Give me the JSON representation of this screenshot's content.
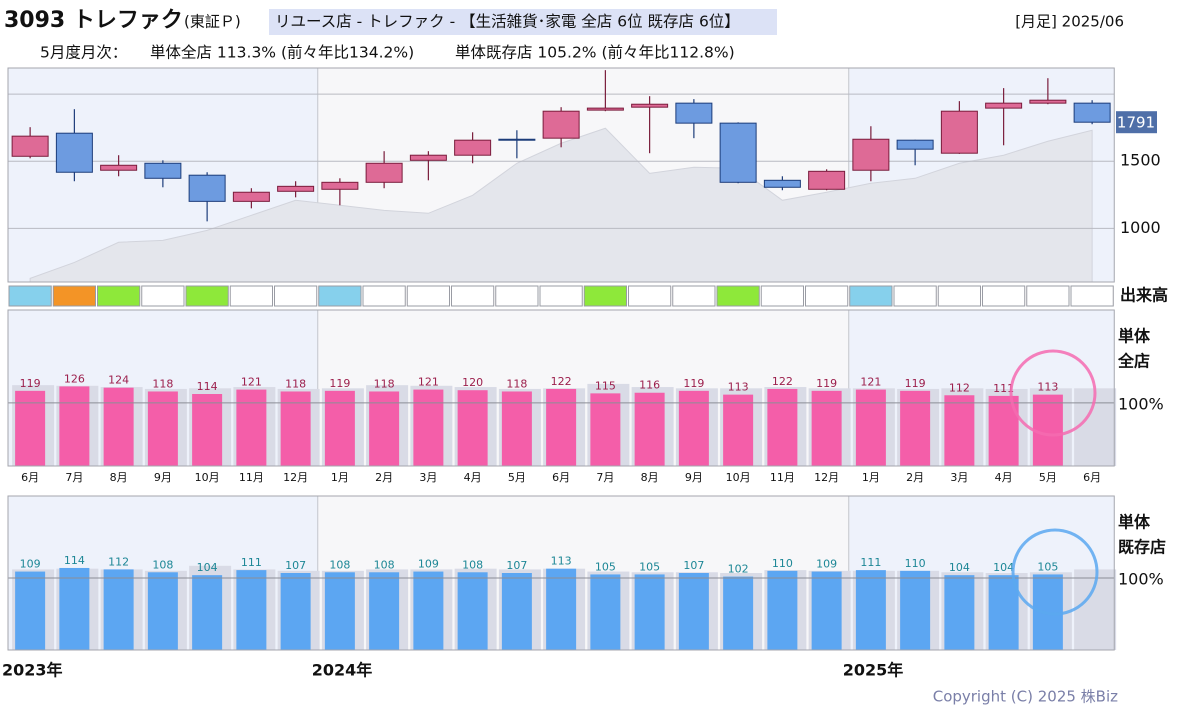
{
  "header": {
    "title": "3093 トレファク",
    "market": "(東証Ｐ)",
    "tag": "リユース店 - トレファク - 【生活雑貨･家電 全店 6位 既存店 6位】",
    "period": "[月足] 2025/06",
    "summary_label": "5月度月次：",
    "summary_all": "単体全店 113.3% (前々年比134.2%)",
    "summary_existing": "単体既存店 105.2% (前々年比112.8%)"
  },
  "chart_data": [
    {
      "type": "candlestick",
      "open": [
        1537,
        1709,
        1433,
        1485,
        1396,
        1201,
        1276,
        1291,
        1343,
        1507,
        1545,
        1664,
        1672,
        1881,
        1903,
        1933,
        1784,
        1358,
        1291,
        1433,
        1657,
        1560,
        1896,
        1933,
        1933
      ],
      "high": [
        1754,
        1888,
        1545,
        1507,
        1418,
        1299,
        1351,
        1373,
        1575,
        1575,
        1716,
        1731,
        1903,
        2179,
        1985,
        1963,
        1790,
        1388,
        1440,
        1761,
        1660,
        1948,
        2045,
        2119,
        1955
      ],
      "low": [
        1522,
        1351,
        1388,
        1306,
        1052,
        1149,
        1231,
        1172,
        1299,
        1358,
        1485,
        1522,
        1604,
        1873,
        1560,
        1672,
        1336,
        1284,
        1284,
        1351,
        1470,
        1555,
        1619,
        1925,
        1776
      ],
      "close": [
        1687,
        1418,
        1470,
        1373,
        1201,
        1269,
        1313,
        1343,
        1485,
        1545,
        1657,
        1660,
        1873,
        1896,
        1925,
        1784,
        1343,
        1306,
        1425,
        1664,
        1590,
        1873,
        1933,
        1955,
        1791
      ],
      "shade_values": [
        627,
        746,
        896,
        910,
        985,
        1097,
        1209,
        1172,
        1134,
        1112,
        1246,
        1485,
        1634,
        1746,
        1410,
        1455,
        1448,
        1209,
        1269,
        1336,
        1373,
        1485,
        1545,
        1649,
        1731
      ],
      "up_color": "#de6a96",
      "down_color": "#6d9be0",
      "shade_color": "#e4e6ec",
      "ylim": [
        600,
        2195
      ],
      "yticks": [
        1000,
        1500
      ],
      "grid_values": [
        1000,
        1500,
        2000
      ],
      "volume_label": "出来高",
      "volume_colors": [
        "#86d0ec",
        "#f39426",
        "#8ee83a",
        "#ffffff",
        "#8ee83a",
        "#ffffff",
        "#ffffff",
        "#86d0ec",
        "#ffffff",
        "#ffffff",
        "#ffffff",
        "#ffffff",
        "#ffffff",
        "#8ee83a",
        "#ffffff",
        "#ffffff",
        "#8ee83a",
        "#ffffff",
        "#ffffff",
        "#86d0ec",
        "#ffffff",
        "#ffffff",
        "#ffffff",
        "#ffffff",
        "#ffffff"
      ]
    },
    {
      "type": "bar",
      "label_lines": [
        "単体",
        "全店"
      ],
      "categories": [
        "6月",
        "7月",
        "8月",
        "9月",
        "10月",
        "11月",
        "12月",
        "1月",
        "2月",
        "3月",
        "4月",
        "5月",
        "6月",
        "7月",
        "8月",
        "9月",
        "10月",
        "11月",
        "12月",
        "1月",
        "2月",
        "3月",
        "4月",
        "5月",
        "6月"
      ],
      "series": [
        {
          "color": "#d9dbe6",
          "values": [
            128,
            127,
            125,
            122,
            123,
            125,
            122,
            123,
            128,
            127,
            125,
            122,
            123,
            130,
            125,
            123,
            123,
            125,
            123,
            123,
            122,
            123,
            122,
            123,
            123
          ]
        },
        {
          "color": "#f45ea9",
          "label_color": "#9c1f4c",
          "values": [
            119,
            126,
            124,
            118,
            114,
            121,
            118,
            119,
            118,
            121,
            120,
            118,
            122,
            115,
            116,
            119,
            113,
            122,
            119,
            121,
            119,
            112,
            111,
            113,
            null
          ]
        }
      ],
      "ylim": [
        0,
        247
      ],
      "yticks": [
        {
          "value": 100,
          "label": "100%"
        }
      ]
    },
    {
      "type": "bar",
      "label_lines": [
        "単体",
        "既存店"
      ],
      "series": [
        {
          "color": "#d9dbe6",
          "values": [
            112,
            113,
            112,
            110,
            117,
            112,
            110,
            110,
            112,
            112,
            113,
            112,
            113,
            109,
            108,
            108,
            107,
            111,
            110,
            110,
            110,
            108,
            107,
            108,
            112
          ]
        },
        {
          "color": "#5ca6f2",
          "label_color": "#1d8796",
          "values": [
            109,
            114,
            112,
            108,
            104,
            111,
            107,
            108,
            108,
            109,
            108,
            107,
            113,
            105,
            105,
            107,
            102,
            110,
            109,
            111,
            110,
            104,
            104,
            105,
            null
          ]
        }
      ],
      "ylim": [
        0,
        214
      ],
      "yticks": [
        {
          "value": 100,
          "label": "100%"
        }
      ]
    }
  ],
  "years": [
    {
      "label": "2023年",
      "index": 0
    },
    {
      "label": "2024年",
      "index": 7
    },
    {
      "label": "2025年",
      "index": 19
    }
  ],
  "copyright": "Copyright (C) 2025 株Biz"
}
